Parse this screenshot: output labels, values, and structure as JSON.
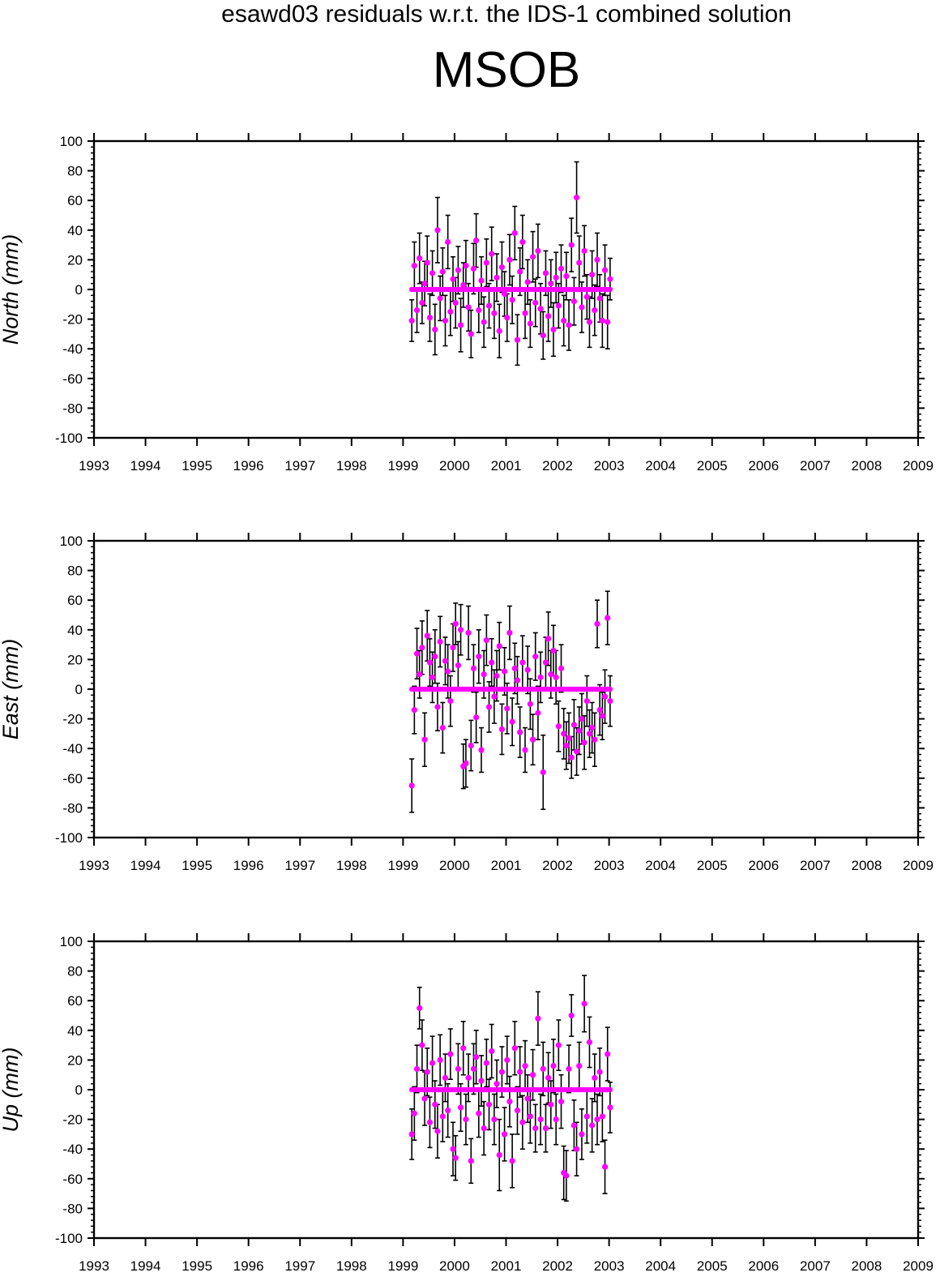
{
  "header": {
    "title": "esawd03 residuals w.r.t. the IDS-1 combined solution",
    "station": "MSOB"
  },
  "colors": {
    "point": "#ff00ff",
    "errorbar": "#000000",
    "axis": "#000000"
  },
  "chart_data": [
    {
      "type": "scatter",
      "ylabel": "North (mm)",
      "xlim": [
        1993,
        2009
      ],
      "ylim": [
        -100,
        100
      ],
      "xticks": [
        1993,
        1994,
        1995,
        1996,
        1997,
        1998,
        1999,
        2000,
        2001,
        2002,
        2003,
        2004,
        2005,
        2006,
        2007,
        2008,
        2009
      ],
      "yticks": [
        -100,
        -80,
        -60,
        -40,
        -20,
        0,
        20,
        40,
        60,
        80,
        100
      ],
      "series": [
        {
          "x": [
            1999.17,
            1999.22,
            1999.27,
            1999.32,
            1999.37,
            1999.42,
            1999.47,
            1999.52,
            1999.57,
            1999.62,
            1999.67,
            1999.72,
            1999.77,
            1999.82,
            1999.87,
            1999.92,
            1999.97,
            2000.02,
            2000.07,
            2000.12,
            2000.17,
            2000.22,
            2000.27,
            2000.32,
            2000.37,
            2000.42,
            2000.47,
            2000.52,
            2000.57,
            2000.62,
            2000.67,
            2000.72,
            2000.77,
            2000.82,
            2000.87,
            2000.92,
            2000.97,
            2001.02,
            2001.07,
            2001.12,
            2001.17,
            2001.22,
            2001.27,
            2001.32,
            2001.37,
            2001.42,
            2001.47,
            2001.52,
            2001.57,
            2001.62,
            2001.67,
            2001.72,
            2001.77,
            2001.82,
            2001.87,
            2001.92,
            2001.97,
            2002.02,
            2002.07,
            2002.12,
            2002.17,
            2002.22,
            2002.27,
            2002.32,
            2002.37,
            2002.42,
            2002.47,
            2002.52,
            2002.57,
            2002.62,
            2002.67,
            2002.72,
            2002.77,
            2002.82,
            2002.87,
            2002.92,
            2002.97,
            2003.02
          ],
          "y": [
            -21,
            16,
            -14,
            21,
            -9,
            4,
            18,
            -19,
            11,
            -27,
            40,
            -6,
            12,
            -21,
            32,
            -15,
            7,
            -9,
            13,
            -24,
            3,
            16,
            -12,
            -30,
            14,
            33,
            -14,
            6,
            -22,
            18,
            -11,
            24,
            -16,
            8,
            -28,
            15,
            -3,
            -19,
            20,
            -7,
            38,
            -34,
            12,
            32,
            -16,
            5,
            -23,
            22,
            -9,
            26,
            -13,
            -31,
            11,
            -18,
            4,
            -27,
            8,
            -11,
            14,
            -21,
            9,
            -24,
            30,
            -8,
            62,
            18,
            -12,
            26,
            -5,
            -22,
            10,
            -14,
            20,
            -6,
            -21,
            13,
            -22,
            7
          ],
          "err": [
            14,
            16,
            15,
            17,
            14,
            15,
            18,
            16,
            15,
            17,
            22,
            15,
            16,
            17,
            18,
            16,
            15,
            17,
            16,
            18,
            15,
            17,
            16,
            16,
            17,
            18,
            15,
            16,
            17,
            16,
            15,
            18,
            17,
            16,
            18,
            17,
            15,
            16,
            17,
            16,
            18,
            17,
            16,
            18,
            17,
            15,
            16,
            17,
            16,
            18,
            17,
            16,
            15,
            17,
            16,
            18,
            17,
            15,
            16,
            17,
            16,
            17,
            18,
            16,
            24,
            18,
            17,
            17,
            15,
            17,
            16,
            17,
            18,
            16,
            18,
            17,
            18,
            14
          ]
        }
      ]
    },
    {
      "type": "scatter",
      "ylabel": "East (mm)",
      "xlim": [
        1993,
        2009
      ],
      "ylim": [
        -100,
        100
      ],
      "xticks": [
        1993,
        1994,
        1995,
        1996,
        1997,
        1998,
        1999,
        2000,
        2001,
        2002,
        2003,
        2004,
        2005,
        2006,
        2007,
        2008,
        2009
      ],
      "yticks": [
        -100,
        -80,
        -60,
        -40,
        -20,
        0,
        20,
        40,
        60,
        80,
        100
      ],
      "series": [
        {
          "x": [
            1999.17,
            1999.22,
            1999.27,
            1999.32,
            1999.37,
            1999.42,
            1999.47,
            1999.52,
            1999.57,
            1999.62,
            1999.67,
            1999.72,
            1999.77,
            1999.82,
            1999.87,
            1999.92,
            1999.97,
            2000.02,
            2000.07,
            2000.12,
            2000.17,
            2000.22,
            2000.27,
            2000.32,
            2000.37,
            2000.42,
            2000.47,
            2000.52,
            2000.57,
            2000.62,
            2000.67,
            2000.72,
            2000.77,
            2000.82,
            2000.87,
            2000.92,
            2000.97,
            2001.02,
            2001.07,
            2001.12,
            2001.17,
            2001.22,
            2001.27,
            2001.32,
            2001.37,
            2001.42,
            2001.47,
            2001.52,
            2001.57,
            2001.62,
            2001.67,
            2001.72,
            2001.77,
            2001.82,
            2001.87,
            2001.92,
            2001.97,
            2002.02,
            2002.07,
            2002.12,
            2002.17,
            2002.22,
            2002.27,
            2002.32,
            2002.37,
            2002.42,
            2002.47,
            2002.52,
            2002.57,
            2002.62,
            2002.67,
            2002.72,
            2002.77,
            2002.82,
            2002.87,
            2002.92,
            2002.97,
            2003.02
          ],
          "y": [
            -65,
            -14,
            24,
            10,
            28,
            -34,
            36,
            18,
            8,
            22,
            -12,
            32,
            -26,
            19,
            12,
            -8,
            28,
            44,
            16,
            40,
            -52,
            -50,
            38,
            -38,
            14,
            -19,
            22,
            -41,
            10,
            33,
            -12,
            18,
            -5,
            9,
            29,
            -27,
            12,
            -13,
            38,
            -22,
            14,
            6,
            -29,
            18,
            -41,
            13,
            -10,
            -34,
            22,
            -16,
            8,
            -56,
            18,
            34,
            10,
            26,
            8,
            -25,
            14,
            -30,
            -38,
            -33,
            -46,
            -24,
            -42,
            -28,
            -20,
            -36,
            -8,
            -30,
            -26,
            -34,
            44,
            -14,
            -18,
            -5,
            48,
            -8
          ],
          "err": [
            18,
            16,
            17,
            16,
            18,
            18,
            17,
            16,
            17,
            18,
            16,
            17,
            17,
            16,
            18,
            17,
            16,
            14,
            16,
            17,
            15,
            16,
            18,
            17,
            16,
            17,
            18,
            15,
            16,
            17,
            17,
            16,
            18,
            17,
            16,
            17,
            16,
            17,
            18,
            16,
            17,
            16,
            17,
            18,
            15,
            16,
            17,
            17,
            16,
            18,
            17,
            25,
            17,
            18,
            16,
            17,
            18,
            17,
            16,
            17,
            16,
            17,
            14,
            17,
            16,
            16,
            17,
            18,
            17,
            16,
            17,
            18,
            16,
            17,
            16,
            18,
            18,
            17
          ]
        }
      ]
    },
    {
      "type": "scatter",
      "ylabel": "Up (mm)",
      "xlim": [
        1993,
        2009
      ],
      "ylim": [
        -100,
        100
      ],
      "xticks": [
        1993,
        1994,
        1995,
        1996,
        1997,
        1998,
        1999,
        2000,
        2001,
        2002,
        2003,
        2004,
        2005,
        2006,
        2007,
        2008,
        2009
      ],
      "yticks": [
        -100,
        -80,
        -60,
        -40,
        -20,
        0,
        20,
        40,
        60,
        80,
        100
      ],
      "series": [
        {
          "x": [
            1999.17,
            1999.22,
            1999.27,
            1999.32,
            1999.37,
            1999.42,
            1999.47,
            1999.52,
            1999.57,
            1999.62,
            1999.67,
            1999.72,
            1999.77,
            1999.82,
            1999.87,
            1999.92,
            1999.97,
            2000.02,
            2000.07,
            2000.12,
            2000.17,
            2000.22,
            2000.27,
            2000.32,
            2000.37,
            2000.42,
            2000.47,
            2000.52,
            2000.57,
            2000.62,
            2000.67,
            2000.72,
            2000.77,
            2000.82,
            2000.87,
            2000.92,
            2000.97,
            2001.02,
            2001.07,
            2001.12,
            2001.17,
            2001.22,
            2001.27,
            2001.32,
            2001.37,
            2001.42,
            2001.47,
            2001.52,
            2001.57,
            2001.62,
            2001.67,
            2001.72,
            2001.77,
            2001.82,
            2001.87,
            2001.92,
            2001.97,
            2002.02,
            2002.07,
            2002.12,
            2002.17,
            2002.22,
            2002.27,
            2002.32,
            2002.37,
            2002.42,
            2002.47,
            2002.52,
            2002.57,
            2002.62,
            2002.67,
            2002.72,
            2002.77,
            2002.82,
            2002.87,
            2002.92,
            2002.97,
            2003.02
          ],
          "y": [
            -30,
            -16,
            14,
            55,
            30,
            -6,
            12,
            -22,
            18,
            -10,
            -28,
            20,
            -18,
            8,
            -14,
            24,
            -40,
            -46,
            14,
            -12,
            28,
            -20,
            8,
            -48,
            14,
            22,
            -16,
            6,
            -26,
            18,
            -10,
            26,
            -20,
            4,
            -44,
            12,
            -30,
            20,
            -8,
            -48,
            28,
            -14,
            12,
            -22,
            16,
            -6,
            -18,
            10,
            -26,
            48,
            -20,
            14,
            -26,
            8,
            -10,
            16,
            -20,
            30,
            -8,
            -56,
            -58,
            14,
            50,
            -24,
            -40,
            16,
            -30,
            58,
            -18,
            32,
            -24,
            8,
            -20,
            12,
            -18,
            -52,
            24,
            -12
          ],
          "err": [
            17,
            18,
            16,
            14,
            17,
            18,
            16,
            17,
            18,
            16,
            18,
            17,
            17,
            16,
            18,
            17,
            18,
            15,
            17,
            16,
            18,
            17,
            16,
            15,
            17,
            18,
            16,
            17,
            18,
            16,
            17,
            18,
            17,
            16,
            24,
            17,
            18,
            16,
            17,
            18,
            18,
            16,
            17,
            18,
            17,
            16,
            18,
            17,
            16,
            18,
            17,
            18,
            16,
            17,
            16,
            18,
            17,
            17,
            18,
            18,
            17,
            16,
            14,
            17,
            18,
            16,
            17,
            19,
            18,
            17,
            18,
            16,
            17,
            16,
            17,
            18,
            18,
            17
          ]
        }
      ]
    }
  ]
}
